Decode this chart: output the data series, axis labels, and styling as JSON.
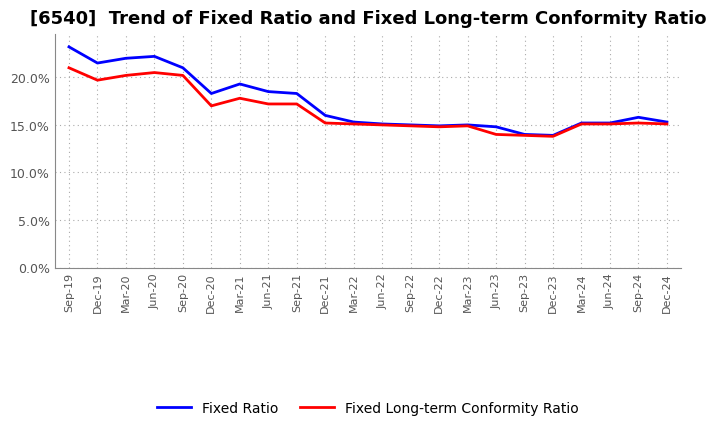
{
  "title": "[6540]  Trend of Fixed Ratio and Fixed Long-term Conformity Ratio",
  "x_labels": [
    "Sep-19",
    "Dec-19",
    "Mar-20",
    "Jun-20",
    "Sep-20",
    "Dec-20",
    "Mar-21",
    "Jun-21",
    "Sep-21",
    "Dec-21",
    "Mar-22",
    "Jun-22",
    "Sep-22",
    "Dec-22",
    "Mar-23",
    "Jun-23",
    "Sep-23",
    "Dec-23",
    "Mar-24",
    "Jun-24",
    "Sep-24",
    "Dec-24"
  ],
  "fixed_ratio": [
    0.232,
    0.215,
    0.22,
    0.222,
    0.21,
    0.183,
    0.193,
    0.185,
    0.183,
    0.16,
    0.153,
    0.151,
    0.15,
    0.149,
    0.15,
    0.148,
    0.14,
    0.139,
    0.152,
    0.152,
    0.158,
    0.153
  ],
  "fixed_lt_conformity": [
    0.21,
    0.197,
    0.202,
    0.205,
    0.202,
    0.17,
    0.178,
    0.172,
    0.172,
    0.152,
    0.151,
    0.15,
    0.149,
    0.148,
    0.149,
    0.14,
    0.139,
    0.138,
    0.151,
    0.151,
    0.152,
    0.151
  ],
  "fixed_ratio_color": "#0000FF",
  "fixed_lt_color": "#FF0000",
  "ylim": [
    0.0,
    0.245
  ],
  "yticks": [
    0.0,
    0.05,
    0.1,
    0.15,
    0.2
  ],
  "ytick_labels": [
    "0.0%",
    "5.0%",
    "10.0%",
    "15.0%",
    "20.0%"
  ],
  "legend_fixed_ratio": "Fixed Ratio",
  "legend_fixed_lt": "Fixed Long-term Conformity Ratio",
  "bg_color": "#FFFFFF",
  "plot_bg_color": "#FFFFFF",
  "grid_color": "#AAAAAA",
  "line_width": 2.0,
  "title_fontsize": 13,
  "tick_fontsize": 9,
  "legend_fontsize": 10
}
